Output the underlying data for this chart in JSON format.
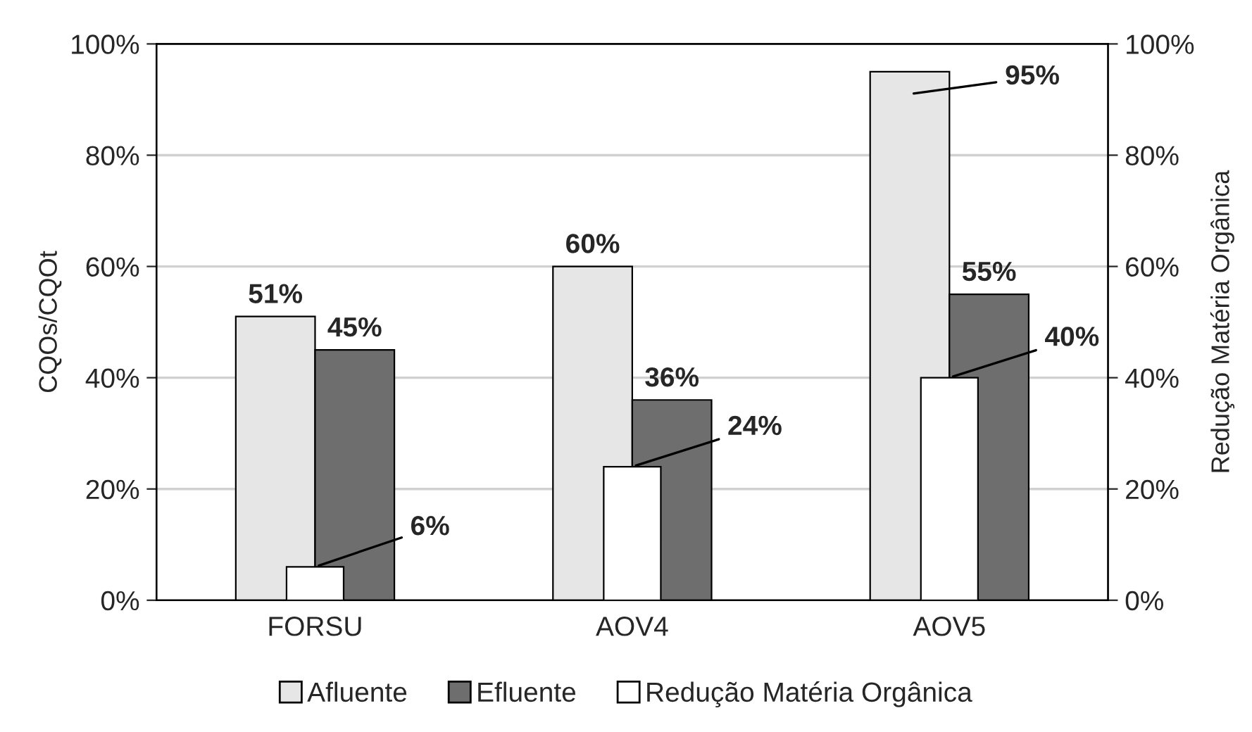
{
  "chart_data": {
    "type": "bar",
    "categories": [
      "FORSU",
      "AOV4",
      "AOV5"
    ],
    "ylabel": "CQOs/CQOt",
    "y2label": "Redução Matéria Orgânica",
    "series": [
      {
        "name": "Afluente",
        "color": "#e6e6e6",
        "values": [
          51,
          60,
          95
        ],
        "value_labels": [
          "51%",
          "60%",
          "95%"
        ]
      },
      {
        "name": "Efluente",
        "color": "#6e6e6e",
        "values": [
          45,
          36,
          55
        ],
        "value_labels": [
          "45%",
          "36%",
          "55%"
        ]
      },
      {
        "name": "Redução Matéria Orgânica",
        "color": "#ffffff",
        "values": [
          6,
          24,
          40
        ],
        "value_labels": [
          "6%",
          "24%",
          "40%"
        ],
        "axis": "y2"
      }
    ],
    "ylim": [
      0,
      100
    ],
    "yticks": [
      {
        "value": 0,
        "label": "0%"
      },
      {
        "value": 20,
        "label": "20%"
      },
      {
        "value": 40,
        "label": "40%"
      },
      {
        "value": 60,
        "label": "60%"
      },
      {
        "value": 80,
        "label": "80%"
      },
      {
        "value": 100,
        "label": "100%"
      }
    ],
    "y2lim": [
      0,
      100
    ],
    "y2ticks": [
      {
        "value": 0,
        "label": "0%"
      },
      {
        "value": 20,
        "label": "20%"
      },
      {
        "value": 40,
        "label": "40%"
      },
      {
        "value": 60,
        "label": "60%"
      },
      {
        "value": 80,
        "label": "80%"
      },
      {
        "value": 100,
        "label": "100%"
      }
    ],
    "grid": "y",
    "legend": "bottom"
  }
}
